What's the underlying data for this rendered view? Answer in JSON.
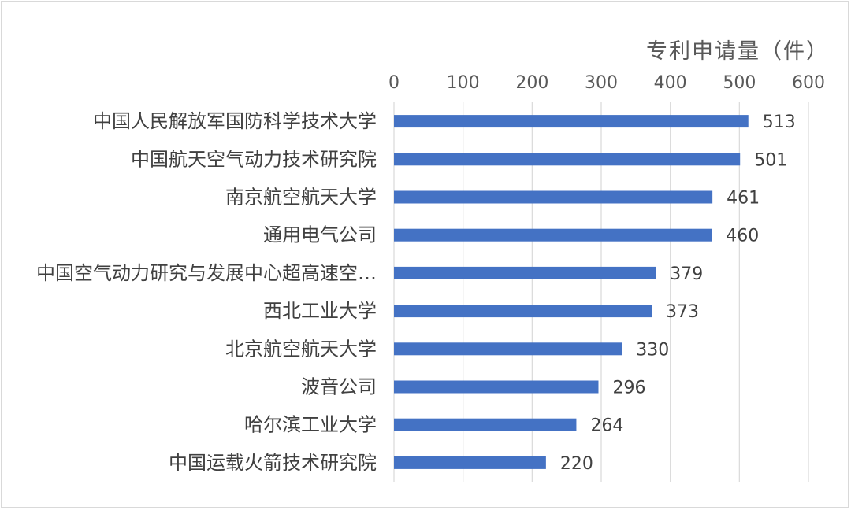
{
  "chart_data": {
    "type": "bar",
    "orientation": "horizontal",
    "xlabel": "专利申请量（件）",
    "xlim": [
      0,
      600
    ],
    "xticks": [
      "0",
      "100",
      "200",
      "300",
      "400",
      "500",
      "600"
    ],
    "x_axis_position": "top",
    "grid": true,
    "legend": "none",
    "bar_color": "#4472c4",
    "categories": [
      "中国人民解放军国防科学技术大学",
      "中国航天空气动力技术研究院",
      "南京航空航天大学",
      "通用电气公司",
      "中国空气动力研究与发展中心超高速空…",
      "西北工业大学",
      "北京航空航天大学",
      "波音公司",
      "哈尔滨工业大学",
      "中国运载火箭技术研究院"
    ],
    "values": [
      513,
      501,
      461,
      460,
      379,
      373,
      330,
      296,
      264,
      220
    ]
  }
}
